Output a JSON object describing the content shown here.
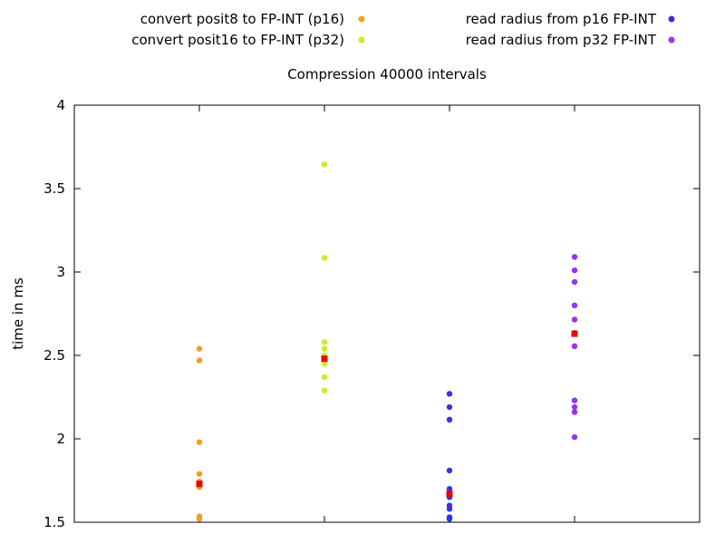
{
  "chart_data": {
    "type": "scatter",
    "title": "Compression 40000 intervals",
    "xlabel": "",
    "ylabel": "time in ms",
    "ylim": [
      1.5,
      4.0
    ],
    "xlim": [
      0,
      5
    ],
    "yticks": [
      1.5,
      2,
      2.5,
      3,
      3.5,
      4
    ],
    "ytick_labels": [
      "1.5",
      "2",
      "2.5",
      "3",
      "3.5",
      "4"
    ],
    "xticks": [
      1,
      2,
      3,
      4
    ],
    "grid": false,
    "legend_position": "top",
    "median_color": "#ee0000",
    "series": [
      {
        "name": "convert posit8 to FP-INT (p16)",
        "color": "#f0a020",
        "x": 1,
        "values": [
          2.54,
          2.47,
          1.98,
          1.79,
          1.745,
          1.73,
          1.72,
          1.71,
          1.535,
          1.52
        ],
        "median": 1.73
      },
      {
        "name": "convert posit16 to FP-INT (p32)",
        "color": "#ccee22",
        "x": 2,
        "values": [
          3.645,
          3.085,
          2.58,
          2.54,
          2.5,
          2.48,
          2.47,
          2.45,
          2.37,
          2.29
        ],
        "median": 2.48
      },
      {
        "name": "read radius from p16 FP-INT",
        "color": "#3333e6",
        "x": 3,
        "values": [
          2.27,
          2.19,
          2.115,
          1.81,
          1.7,
          1.675,
          1.65,
          1.6,
          1.58,
          1.53,
          1.52
        ],
        "median": 1.67
      },
      {
        "name": "read radius from p32 FP-INT",
        "color": "#9933ee",
        "x": 4,
        "values": [
          3.09,
          3.01,
          2.94,
          2.8,
          2.715,
          2.635,
          2.555,
          2.23,
          2.19,
          2.16,
          2.01
        ],
        "median": 2.63
      }
    ]
  }
}
